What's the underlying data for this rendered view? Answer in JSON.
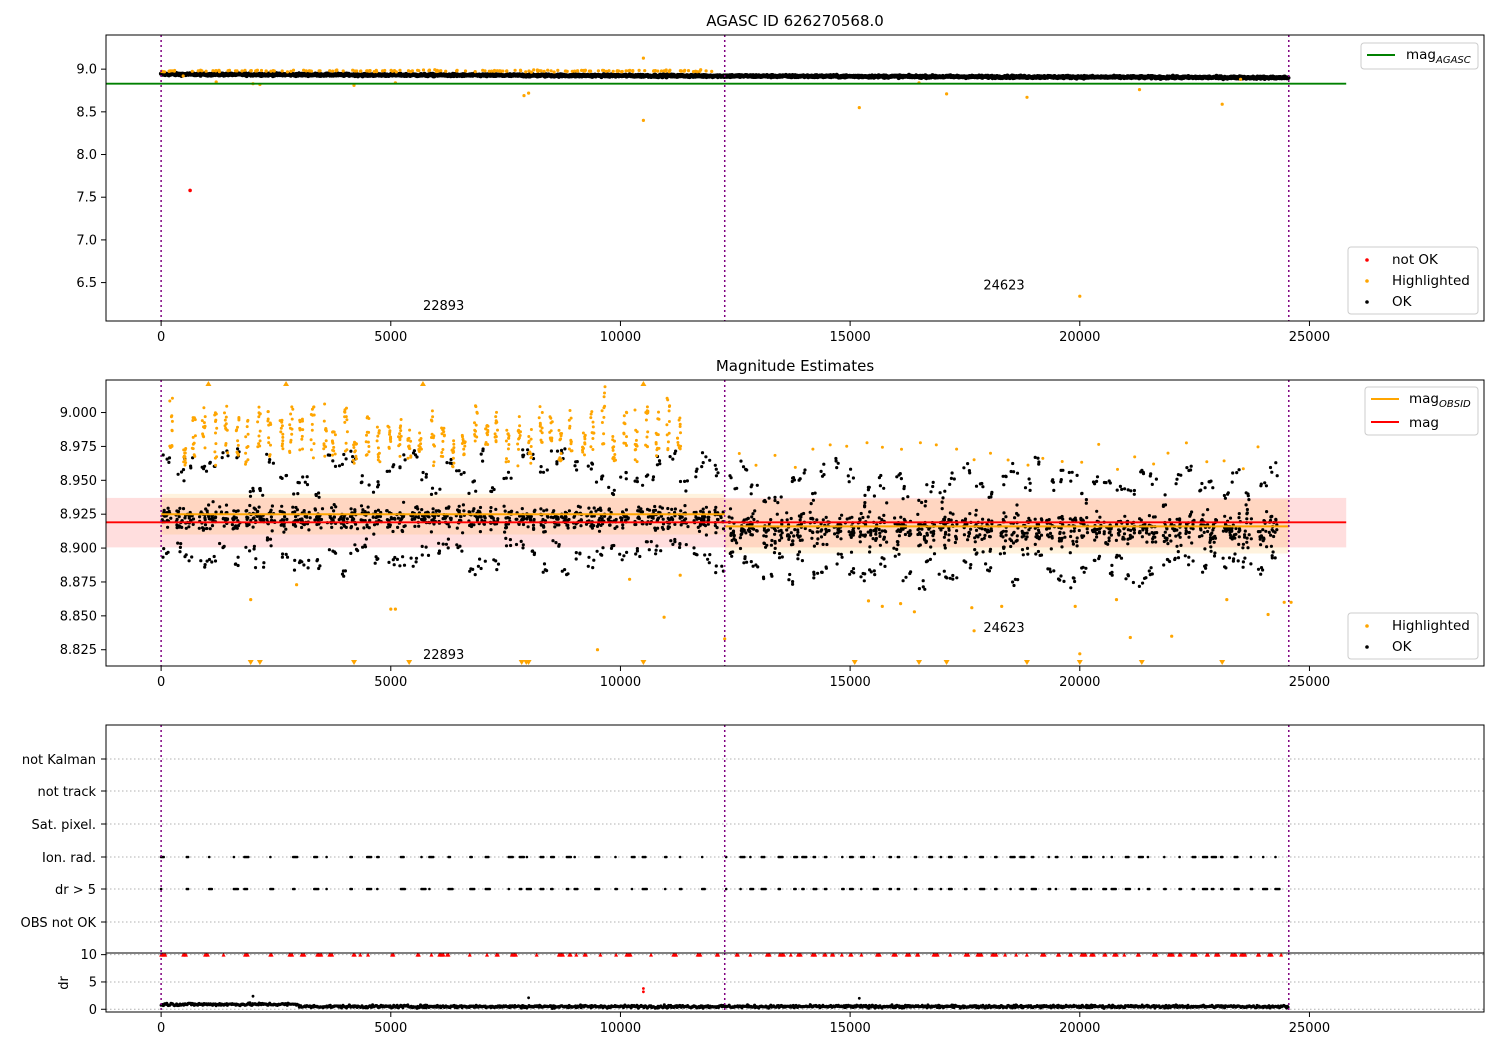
{
  "chart_data": [
    {
      "type": "scatter",
      "title": "AGASC ID 626270568.0",
      "xlabel": "",
      "ylabel": "",
      "xlim": [
        -1200,
        28800
      ],
      "ylim": [
        6.05,
        9.4
      ],
      "xticks": [
        0,
        5000,
        10000,
        15000,
        20000,
        25000
      ],
      "xtick_labels": [
        "0",
        "5000",
        "10000",
        "15000",
        "20000",
        "25000"
      ],
      "yticks": [
        6.5,
        7.0,
        7.5,
        8.0,
        8.5,
        9.0
      ],
      "ytick_labels": [
        "6.5",
        "7.0",
        "7.5",
        "8.0",
        "8.5",
        "9.0"
      ],
      "obs_boundaries": [
        0,
        12270,
        24550
      ],
      "obs_labels": [
        {
          "text": "22893",
          "x": 5700,
          "y": 6.18
        },
        {
          "text": "24623",
          "x": 17900,
          "y": 6.42
        }
      ],
      "reference_lines": [
        {
          "name": "mag",
          "subscript": "AGASC",
          "y": 8.83,
          "x_range": [
            -1200,
            25800
          ],
          "color": "#008000"
        }
      ],
      "series": [
        {
          "name": "not OK",
          "color": "#ff0000",
          "points": [
            [
              630,
              7.58
            ]
          ]
        },
        {
          "name": "Highlighted",
          "color": "#ffa500",
          "band": {
            "x_range": [
              0,
              12000
            ],
            "y_center": 8.98,
            "spread": 0.02,
            "count": 180
          },
          "points": [
            [
              480,
              8.92
            ],
            [
              1200,
              8.85
            ],
            [
              2000,
              8.83
            ],
            [
              2150,
              8.82
            ],
            [
              4200,
              8.81
            ],
            [
              5100,
              8.84
            ],
            [
              7900,
              8.69
            ],
            [
              8000,
              8.72
            ],
            [
              10500,
              8.4
            ],
            [
              10500,
              9.13
            ],
            [
              15200,
              8.55
            ],
            [
              16500,
              8.84
            ],
            [
              17100,
              8.71
            ],
            [
              18850,
              8.67
            ],
            [
              20000,
              6.34
            ],
            [
              21300,
              8.76
            ],
            [
              23100,
              8.59
            ],
            [
              23500,
              8.88
            ]
          ]
        },
        {
          "name": "OK",
          "color": "#000000",
          "band": {
            "x_range": [
              0,
              24550
            ],
            "y_start": 8.94,
            "y_end": 8.9,
            "spread": 0.022,
            "count": 2200
          },
          "points": []
        }
      ],
      "legend_upper": {
        "position": "upper-right"
      },
      "legend_lower": {
        "position": "lower-right",
        "entries": [
          "not OK",
          "Highlighted",
          "OK"
        ]
      }
    },
    {
      "type": "scatter",
      "title": "Magnitude Estimates",
      "xlabel": "",
      "ylabel": "",
      "xlim": [
        -1200,
        28800
      ],
      "ylim": [
        8.813,
        9.024
      ],
      "xticks": [
        0,
        5000,
        10000,
        15000,
        20000,
        25000
      ],
      "xtick_labels": [
        "0",
        "5000",
        "10000",
        "15000",
        "20000",
        "25000"
      ],
      "yticks": [
        8.825,
        8.85,
        8.875,
        8.9,
        8.925,
        8.95,
        8.975,
        9.0
      ],
      "ytick_labels": [
        "8.825",
        "8.850",
        "8.875",
        "8.900",
        "8.925",
        "8.950",
        "8.975",
        "9.000"
      ],
      "obs_boundaries": [
        0,
        12270,
        24550
      ],
      "obs_labels": [
        {
          "text": "22893",
          "x": 5700,
          "y": 8.818
        },
        {
          "text": "24623",
          "x": 17900,
          "y": 8.838
        }
      ],
      "reference_lines": [
        {
          "name": "mag",
          "subscript": "OBSID",
          "color": "#ffa500",
          "segments": [
            {
              "x_range": [
                0,
                12270
              ],
              "y": 8.925
            },
            {
              "x_range": [
                12270,
                24550
              ],
              "y": 8.916
            }
          ]
        },
        {
          "name": "mag",
          "color": "#ff0000",
          "y": 8.919,
          "x_range": [
            -1200,
            25800
          ]
        }
      ],
      "shaded_bands": [
        {
          "color": "#ff0000",
          "opacity": 0.13,
          "x_range": [
            -1200,
            25800
          ],
          "y_range": [
            8.9005,
            8.937
          ]
        },
        {
          "color": "#ffa500",
          "opacity": 0.13,
          "x_range": [
            0,
            12270
          ],
          "y_range": [
            8.91,
            8.94
          ]
        },
        {
          "color": "#ffa500",
          "opacity": 0.13,
          "x_range": [
            12270,
            24550
          ],
          "y_range": [
            8.896,
            8.936
          ]
        }
      ],
      "series": [
        {
          "name": "Highlighted",
          "color": "#ffa500",
          "points": [
            [
              1950,
              8.862
            ],
            [
              2950,
              8.873
            ],
            [
              5100,
              8.855
            ],
            [
              5000,
              8.855
            ],
            [
              9500,
              8.825
            ],
            [
              10200,
              8.877
            ],
            [
              10950,
              8.849
            ],
            [
              11300,
              8.88
            ],
            [
              12270,
              8.833
            ],
            [
              15400,
              8.861
            ],
            [
              15700,
              8.857
            ],
            [
              16100,
              8.859
            ],
            [
              16400,
              8.853
            ],
            [
              17650,
              8.856
            ],
            [
              17700,
              8.839
            ],
            [
              18300,
              8.857
            ],
            [
              19900,
              8.857
            ],
            [
              20000,
              8.822
            ],
            [
              20800,
              8.862
            ],
            [
              21100,
              8.834
            ],
            [
              22000,
              8.835
            ],
            [
              23200,
              8.862
            ],
            [
              24100,
              8.851
            ],
            [
              24450,
              8.86
            ],
            [
              24600,
              8.86
            ]
          ]
        },
        {
          "name": "OK",
          "color": "#000000",
          "points": []
        }
      ],
      "offscale_markers": {
        "color": "#ffa500",
        "top_x": [
          1030,
          2720,
          5700,
          10500
        ],
        "bottom_x": [
          1950,
          2150,
          4200,
          5400,
          7850,
          7950,
          8000,
          10500,
          15100,
          16500,
          17100,
          18850,
          20000,
          21350,
          23100
        ]
      },
      "legend_upper": {
        "position": "upper-right"
      },
      "legend_lower": {
        "position": "lower-right",
        "entries": [
          "Highlighted",
          "OK"
        ]
      }
    },
    {
      "type": "scatter",
      "title": "",
      "xlabel": "",
      "ylabel": "",
      "xlim": [
        -1200,
        28800
      ],
      "categories": [
        "not Kalman",
        "not track",
        "Sat. pixel.",
        "Ion. rad.",
        "dr > 5",
        "OBS not OK"
      ],
      "obs_boundaries": [
        0,
        12270,
        24550
      ],
      "flag_rows": [
        "Ion. rad.",
        "dr > 5"
      ]
    },
    {
      "type": "scatter",
      "title": "",
      "xlabel": "",
      "ylabel": "dr",
      "xlim": [
        -1200,
        28800
      ],
      "ylim": [
        -0.5,
        10.3
      ],
      "yticks": [
        0,
        5,
        10
      ],
      "ytick_labels": [
        "0",
        "5",
        "10"
      ],
      "xticks": [
        0,
        5000,
        10000,
        15000,
        20000,
        25000
      ],
      "xtick_labels": [
        "0",
        "5000",
        "10000",
        "15000",
        "20000",
        "25000"
      ],
      "obs_boundaries": [
        0,
        12270,
        24550
      ],
      "clipped_marker_color": "#ff0000",
      "outlier_points": [
        [
          10500,
          3.8
        ],
        [
          10500,
          3.2
        ],
        [
          2000,
          2.4
        ],
        [
          8000,
          2.1
        ],
        [
          15200,
          2.0
        ]
      ]
    }
  ]
}
